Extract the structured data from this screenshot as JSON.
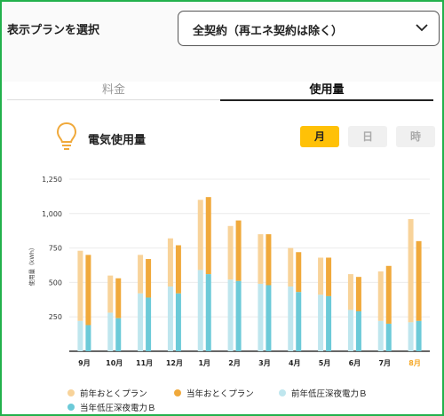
{
  "plan": {
    "label": "表示プランを選択",
    "selected": "全契約（再エネ契約は除く）"
  },
  "tabs": {
    "fee": "料金",
    "usage": "使用量"
  },
  "section": {
    "title": "電気使用量"
  },
  "units": {
    "month": "月",
    "day": "日",
    "hour": "時",
    "active": "月"
  },
  "colors": {
    "prev_otoku": "#f8d39a",
    "cur_otoku": "#f0a93b",
    "prev_night": "#bfe6ee",
    "cur_night": "#6ccad8",
    "active_month": "#f5a623",
    "frame": "#22b14c"
  },
  "chart_data": {
    "type": "bar",
    "stacked": true,
    "grouped": true,
    "categories": [
      "9月",
      "10月",
      "11月",
      "12月",
      "1月",
      "2月",
      "3月",
      "4月",
      "5月",
      "6月",
      "7月",
      "8月"
    ],
    "active_category": "8月",
    "ylabel": "使用量（kWh）",
    "ylim": [
      0,
      1250
    ],
    "yticks": [
      250,
      500,
      750,
      1000,
      1250
    ],
    "ytick_labels": [
      "250",
      "500",
      "750",
      "1,000",
      "1,250"
    ],
    "groups": [
      {
        "name": "前年",
        "base": "前年低圧深夜電力Ｂ",
        "top": "前年おとくプラン",
        "base_values": [
          220,
          280,
          420,
          470,
          590,
          520,
          490,
          470,
          410,
          300,
          220,
          210
        ],
        "total_values": [
          730,
          550,
          700,
          820,
          1100,
          910,
          850,
          750,
          680,
          560,
          580,
          960
        ]
      },
      {
        "name": "当年",
        "base": "当年低圧深夜電力Ｂ",
        "top": "当年おとくプラン",
        "base_values": [
          190,
          240,
          390,
          420,
          560,
          510,
          480,
          430,
          400,
          290,
          200,
          220
        ],
        "total_values": [
          700,
          530,
          670,
          770,
          1120,
          950,
          850,
          720,
          680,
          540,
          620,
          800
        ]
      }
    ],
    "legend": [
      "前年おとくプラン",
      "当年おとくプラン",
      "前年低圧深夜電力Ｂ",
      "当年低圧深夜電力Ｂ"
    ]
  }
}
